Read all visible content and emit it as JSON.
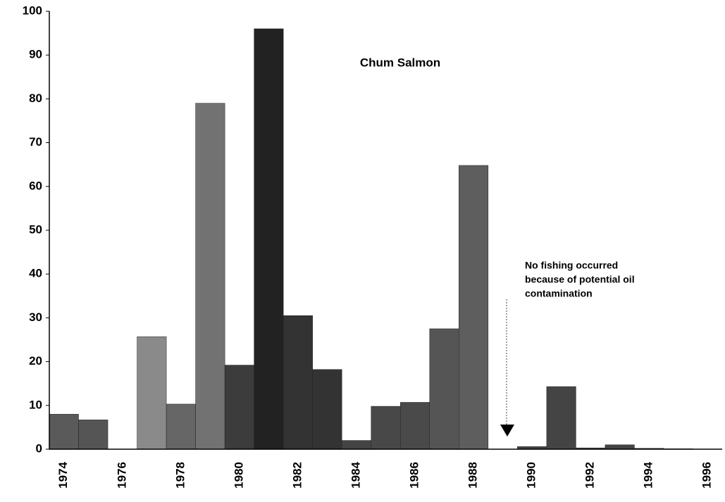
{
  "chart_data": {
    "type": "bar",
    "title": "Chum Salmon",
    "categories": [
      "1974",
      null,
      "1976",
      null,
      "1978",
      null,
      "1980",
      null,
      "1982",
      null,
      "1984",
      null,
      "1986",
      null,
      "1988",
      null,
      "1990",
      null,
      "1992",
      null,
      "1994",
      null,
      "1996"
    ],
    "values": [
      8,
      6.7,
      0,
      25.7,
      10.3,
      79,
      19.2,
      96,
      30.5,
      18.2,
      2,
      9.8,
      10.7,
      27.5,
      64.8,
      null,
      0.6,
      14.3,
      0.3,
      1.0,
      0.2,
      0.1,
      0
    ],
    "colors": [
      "#5a5a5a",
      "#555555",
      "#555555",
      "#8a8a8a",
      "#666666",
      "#727272",
      "#3c3c3c",
      "#222222",
      "#333333",
      "#333333",
      "#444444",
      "#484848",
      "#4a4a4a",
      "#555555",
      "#5e5e5e",
      "#555555",
      "#444444",
      "#444444",
      "#444444",
      "#444444",
      "#444444",
      "#444444",
      "#444444"
    ],
    "ylim": [
      0,
      100
    ],
    "yticks": [
      0,
      10,
      20,
      30,
      40,
      50,
      60,
      70,
      80,
      90,
      100
    ],
    "annotation": [
      "No fishing occurred",
      "because of potential oil",
      "contamination"
    ]
  }
}
